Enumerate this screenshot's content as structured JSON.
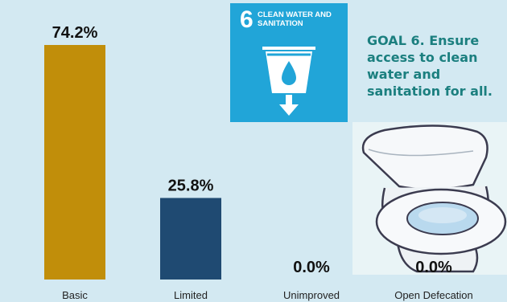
{
  "chart_data": {
    "type": "bar",
    "categories": [
      "Basic",
      "Limited",
      "Unimproved",
      "Open Defecation"
    ],
    "values": [
      74.2,
      25.8,
      0.0,
      0.0
    ],
    "value_labels": [
      "74.2%",
      "25.8%",
      "0.0%",
      "0.0%"
    ],
    "colors": [
      "#c18e0a",
      "#1f4a72",
      "#1f4a72",
      "#1f4a72"
    ],
    "ylim": [
      0,
      74.2
    ],
    "grid": false,
    "legend": "none"
  },
  "badge": {
    "number": "6",
    "title": "CLEAN WATER AND SANITATION",
    "background": "#21a5d8",
    "icon": "water-glass-icon"
  },
  "goal": {
    "text": "GOAL 6. Ensure access to clean water and sanitation for all."
  },
  "illustration": {
    "icon": "toilet-icon"
  }
}
